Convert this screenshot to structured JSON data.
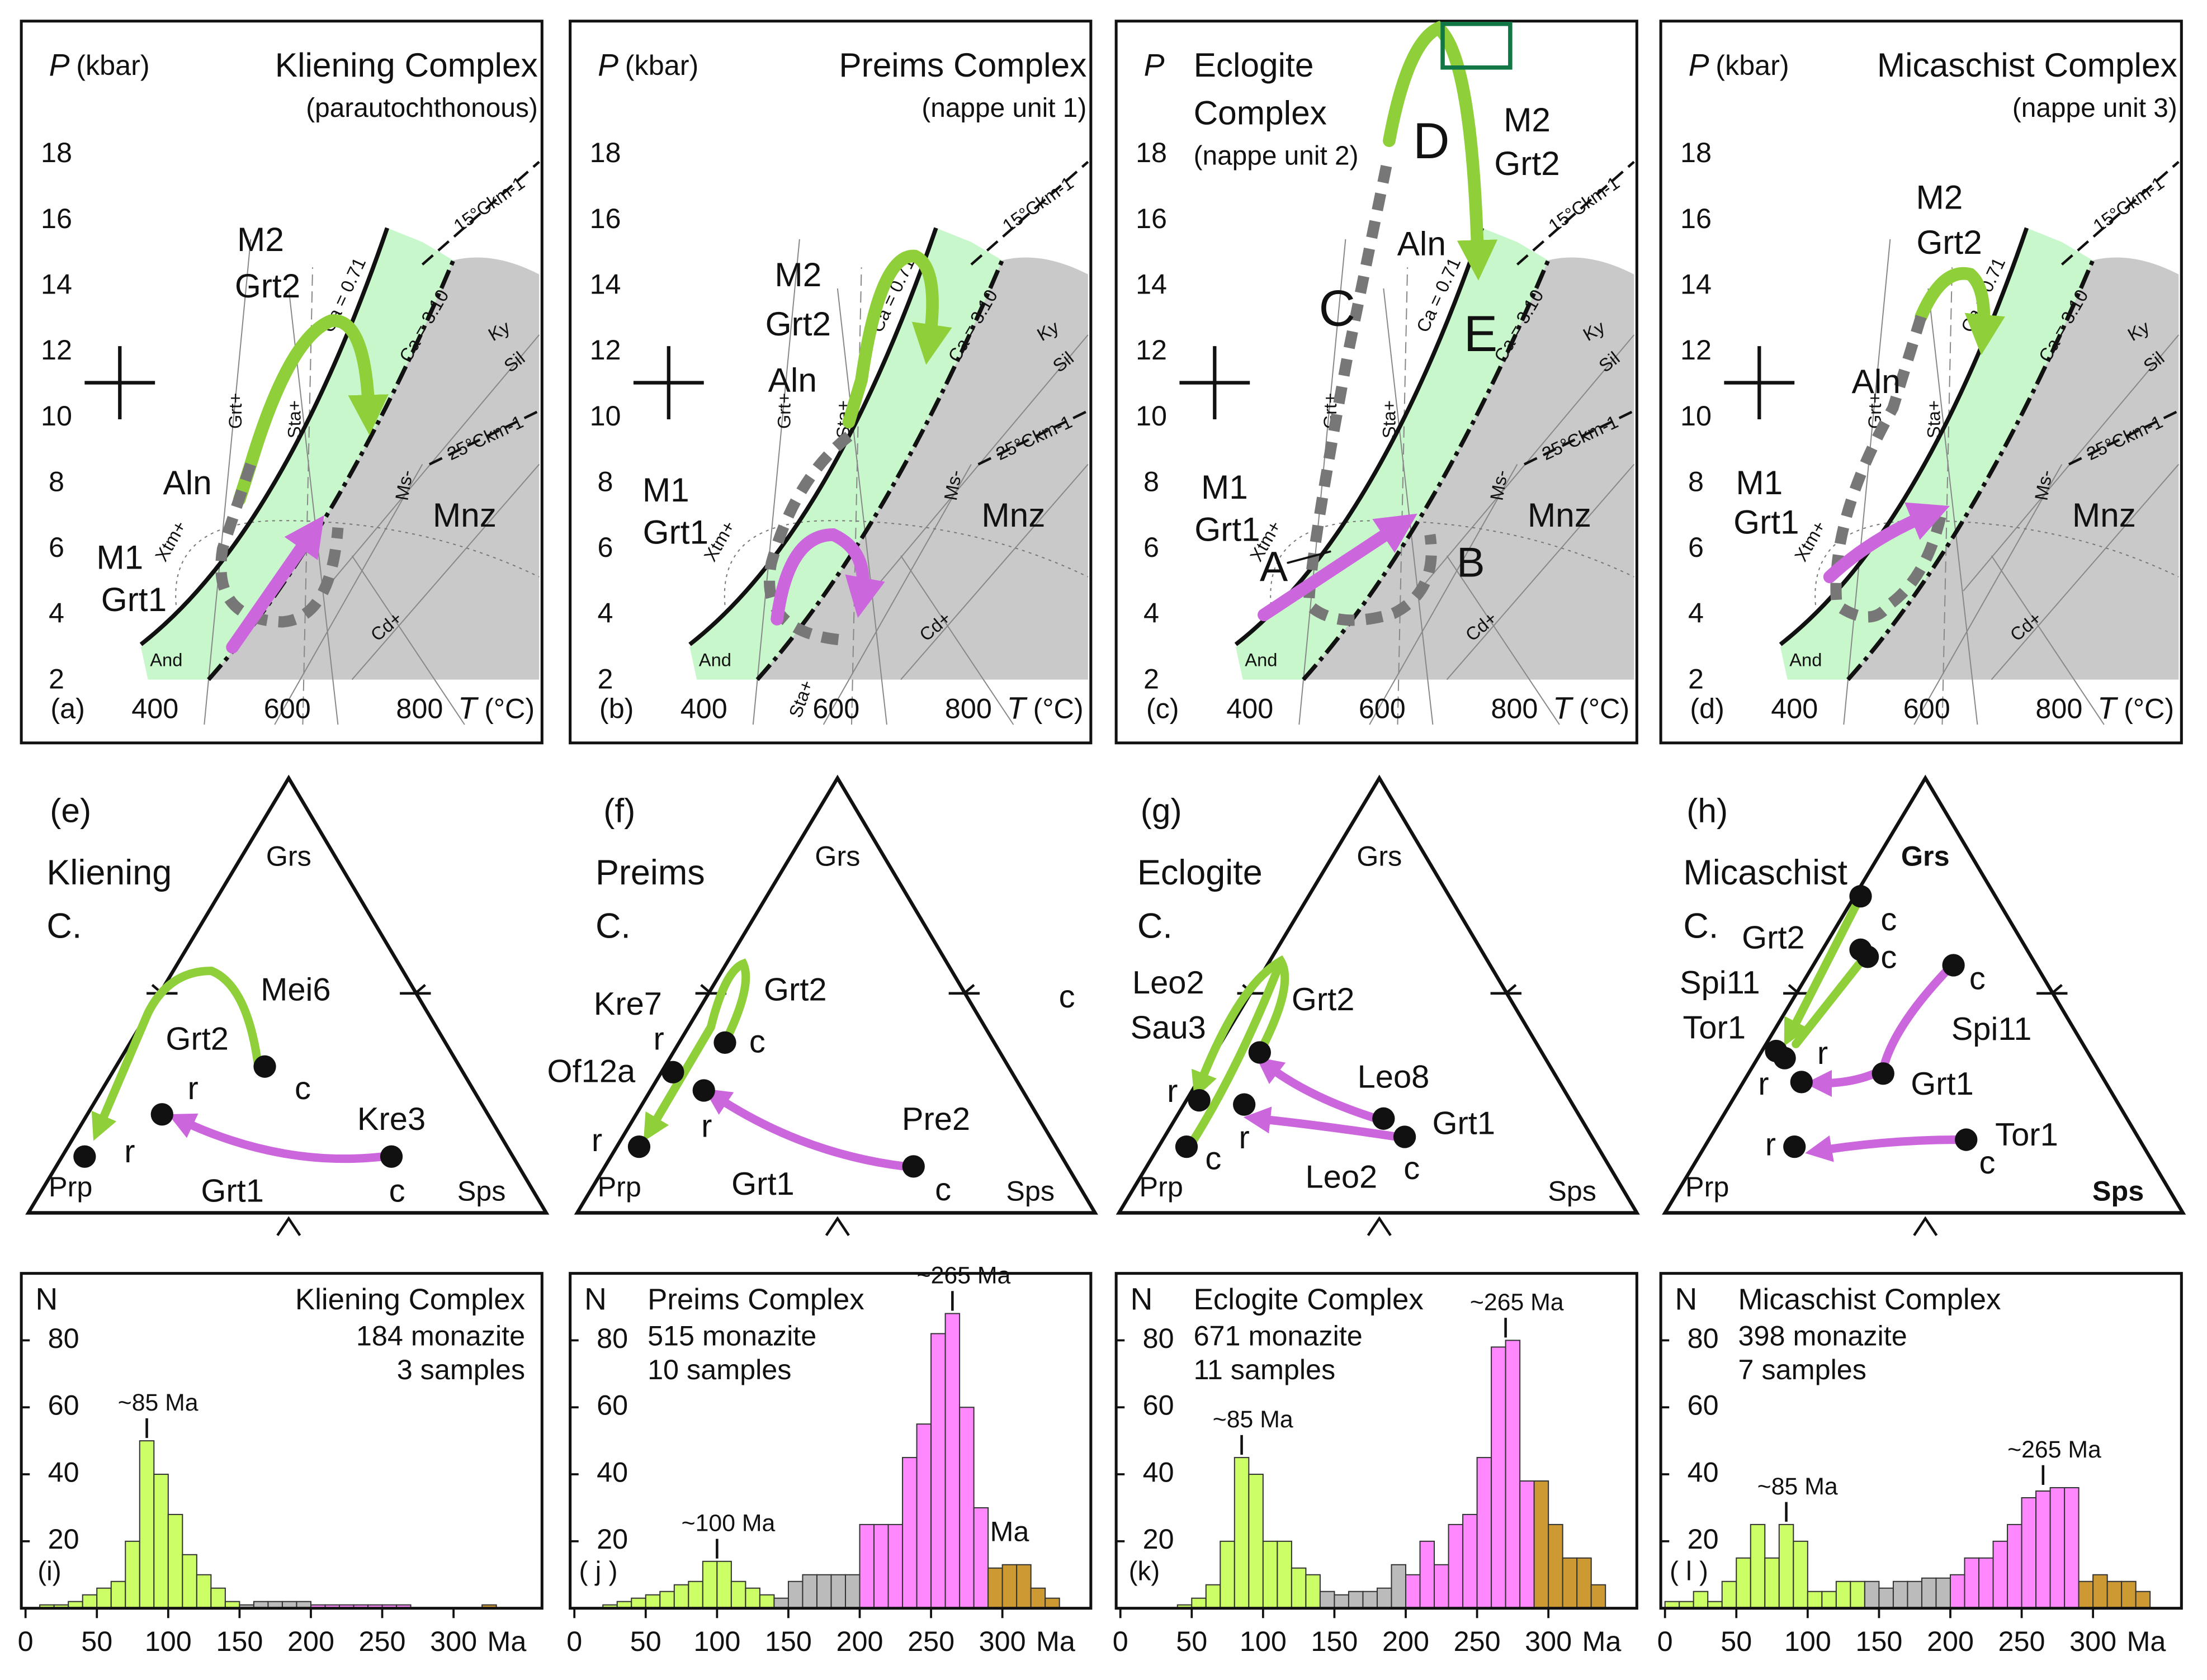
{
  "pt_axis": {
    "p_symbol": "P",
    "t_symbol": "T",
    "t_unit": "(°C)",
    "pticks": [
      2,
      4,
      6,
      8,
      10,
      12,
      14,
      16,
      18
    ],
    "tticks": [
      400,
      600,
      800
    ]
  },
  "phase_labels": [
    "Ca = 0.71",
    "Ca = 3.10",
    "Ky",
    "Sil",
    "Mnz",
    "Ms-",
    "Cd+",
    "Xtm+",
    "Grt+",
    "Sta+",
    "And",
    "15°Ckm-1",
    "25°Ckm-1"
  ],
  "pt_panels": [
    {
      "label": "(a)",
      "title": [
        "Kliening Complex"
      ],
      "subtitle": "(parautochthonous)",
      "p_unit": "(kbar)",
      "labels": [
        "M2",
        "Grt2",
        "Aln",
        "M1",
        "Grt1"
      ]
    },
    {
      "label": "(b)",
      "title": [
        "Preims Complex"
      ],
      "subtitle": "(nappe unit 1)",
      "p_unit": "(kbar)",
      "labels": [
        "M2",
        "Grt2",
        "Aln",
        "M1",
        "Grt1",
        "Sta+"
      ]
    },
    {
      "label": "(c)",
      "title": [
        "Eclogite",
        "Complex"
      ],
      "subtitle": "(nappe unit 2)",
      "labels": [
        "D",
        "M2",
        "Grt2",
        "Aln",
        "C",
        "E",
        "M1",
        "Grt1",
        "A",
        "B"
      ]
    },
    {
      "label": "(d)",
      "title": [
        "Micaschist Complex"
      ],
      "subtitle": "(nappe unit 3)",
      "p_unit": "(kbar)",
      "labels": [
        "M2",
        "Grt2",
        "Aln",
        "M1",
        "Grt1"
      ]
    }
  ],
  "ternary_vertices": {
    "top": "Grs",
    "left": "Prp",
    "right": "Sps"
  },
  "ternaries": [
    {
      "label": "(e)",
      "name": [
        "Kliening",
        "C."
      ],
      "labels": [
        "Mei6",
        "Grt2",
        "c",
        "r",
        "r",
        "Kre3",
        "Grt1",
        "c"
      ]
    },
    {
      "label": "(f)",
      "name": [
        "Preims",
        "C."
      ],
      "labels": [
        "Kre7",
        "Grt2",
        "c",
        "Of12a",
        "r",
        "r",
        "r",
        "Pre2",
        "Grt1",
        "c",
        "c"
      ]
    },
    {
      "label": "(g)",
      "name": [
        "Eclogite",
        "C."
      ],
      "labels": [
        "Leo2",
        "Sau3",
        "Grt2",
        "r",
        "r",
        "Leo8",
        "Grt1",
        "c",
        "Leo2",
        "c"
      ]
    },
    {
      "label": "(h)",
      "name": [
        "Micaschist",
        "C."
      ],
      "bold_vertices": true,
      "labels": [
        "c",
        "c",
        "Grt2",
        "Spi11",
        "Tor1",
        "r",
        "r",
        "c",
        "Spi11",
        "Grt1",
        "r",
        "c",
        "Tor1"
      ]
    }
  ],
  "chart_data": [
    {
      "type": "histogram",
      "panel": "(i)",
      "title": "Kliening Complex",
      "notes": [
        "184 monazite",
        "3 samples"
      ],
      "title_align": "right",
      "y_label": "N",
      "x_label": "Ma",
      "xlim": [
        0,
        362
      ],
      "ylim": [
        0,
        100
      ],
      "xticks": [
        0,
        50,
        100,
        150,
        200,
        250,
        300
      ],
      "yticks": [
        20,
        40,
        60,
        80
      ],
      "series": [
        {
          "color": "#ccff66",
          "bins": [
            10,
            20,
            30,
            40,
            50,
            60,
            70,
            80,
            90,
            100,
            110,
            120,
            130,
            140,
            150
          ],
          "counts": [
            1,
            1,
            2,
            4,
            6,
            8,
            20,
            50,
            40,
            28,
            16,
            10,
            6,
            2
          ]
        },
        {
          "color": "#bbbbbb",
          "bins": [
            150,
            160,
            170,
            180,
            190,
            200
          ],
          "counts": [
            1,
            2,
            2,
            2,
            2
          ]
        },
        {
          "color": "#ff88ff",
          "bins": [
            200,
            210,
            220,
            230,
            240,
            250,
            260,
            270,
            280,
            290,
            300
          ],
          "counts": [
            1,
            1,
            1,
            1,
            1,
            1,
            1,
            0,
            0,
            0
          ]
        },
        {
          "color": "#cc9933",
          "bins": [
            300,
            310,
            320,
            330,
            340
          ],
          "counts": [
            0,
            0,
            1,
            0
          ]
        }
      ],
      "annotations": [
        {
          "text": "~85 Ma",
          "x": 85,
          "marker": true
        }
      ]
    },
    {
      "type": "histogram",
      "panel": "( j )",
      "title": "Preims Complex",
      "notes": [
        "515 monazite",
        "10 samples"
      ],
      "title_align": "left",
      "y_label": "N",
      "x_label": "Ma",
      "xlim": [
        0,
        362
      ],
      "ylim": [
        0,
        100
      ],
      "xticks": [
        0,
        50,
        100,
        150,
        200,
        250,
        300
      ],
      "yticks": [
        20,
        40,
        60,
        80
      ],
      "series": [
        {
          "color": "#ccff66",
          "bins": [
            20,
            30,
            40,
            50,
            60,
            70,
            80,
            90,
            100,
            110,
            120,
            130,
            140
          ],
          "counts": [
            1,
            2,
            3,
            4,
            5,
            7,
            8,
            14,
            14,
            8,
            6,
            4
          ]
        },
        {
          "color": "#bbbbbb",
          "bins": [
            140,
            150,
            160,
            170,
            180,
            190,
            200
          ],
          "counts": [
            3,
            8,
            10,
            10,
            10,
            10
          ]
        },
        {
          "color": "#ff88ff",
          "bins": [
            200,
            210,
            220,
            230,
            240,
            250,
            260,
            270,
            280,
            290
          ],
          "counts": [
            25,
            25,
            25,
            45,
            55,
            82,
            88,
            60,
            30
          ]
        },
        {
          "color": "#cc9933",
          "bins": [
            290,
            300,
            310,
            320,
            330,
            340
          ],
          "counts": [
            12,
            13,
            13,
            6,
            3
          ]
        }
      ],
      "annotations": [
        {
          "text": "~265 Ma",
          "x": 265,
          "marker": true
        },
        {
          "text": "~100 Ma",
          "x": 100,
          "marker": true
        },
        {
          "text": "Ma",
          "x": 305,
          "marker": false
        }
      ]
    },
    {
      "type": "histogram",
      "panel": "(k)",
      "title": "Eclogite Complex",
      "notes": [
        "671 monazite",
        "11 samples"
      ],
      "title_align": "left",
      "y_label": "N",
      "x_label": "Ma",
      "xlim": [
        0,
        362
      ],
      "ylim": [
        0,
        100
      ],
      "xticks": [
        0,
        50,
        100,
        150,
        200,
        250,
        300
      ],
      "yticks": [
        20,
        40,
        60,
        80
      ],
      "series": [
        {
          "color": "#ccff66",
          "bins": [
            40,
            50,
            60,
            70,
            80,
            90,
            100,
            110,
            120,
            130,
            140
          ],
          "counts": [
            1,
            3,
            7,
            20,
            45,
            40,
            20,
            20,
            12,
            10
          ]
        },
        {
          "color": "#bbbbbb",
          "bins": [
            140,
            150,
            160,
            170,
            180,
            190,
            200
          ],
          "counts": [
            5,
            4,
            5,
            5,
            6,
            13
          ]
        },
        {
          "color": "#ff88ff",
          "bins": [
            200,
            210,
            220,
            230,
            240,
            250,
            260,
            270,
            280,
            290
          ],
          "counts": [
            10,
            20,
            13,
            25,
            28,
            45,
            78,
            80,
            38
          ]
        },
        {
          "color": "#cc9933",
          "bins": [
            290,
            300,
            310,
            320,
            330,
            340
          ],
          "counts": [
            38,
            25,
            15,
            15,
            7
          ]
        }
      ],
      "annotations": [
        {
          "text": "~265 Ma",
          "x": 270,
          "marker": true
        },
        {
          "text": "~85 Ma",
          "x": 85,
          "marker": true
        }
      ]
    },
    {
      "type": "histogram",
      "panel": "( l )",
      "title": "Micaschist Complex",
      "notes": [
        "398 monazite",
        "7 samples"
      ],
      "title_align": "left",
      "y_label": "N",
      "x_label": "Ma",
      "xlim": [
        0,
        362
      ],
      "ylim": [
        0,
        100
      ],
      "xticks": [
        0,
        50,
        100,
        150,
        200,
        250,
        300
      ],
      "yticks": [
        20,
        40,
        60,
        80
      ],
      "series": [
        {
          "color": "#ccff66",
          "bins": [
            0,
            10,
            20,
            30,
            40,
            50,
            60,
            70,
            80,
            90,
            100,
            110,
            120,
            130,
            140
          ],
          "counts": [
            2,
            2,
            5,
            2,
            8,
            15,
            25,
            15,
            25,
            20,
            5,
            5,
            8,
            8
          ]
        },
        {
          "color": "#bbbbbb",
          "bins": [
            140,
            150,
            160,
            170,
            180,
            190,
            200
          ],
          "counts": [
            8,
            6,
            8,
            8,
            9,
            9
          ]
        },
        {
          "color": "#ff88ff",
          "bins": [
            200,
            210,
            220,
            230,
            240,
            250,
            260,
            270,
            280,
            290
          ],
          "counts": [
            10,
            15,
            15,
            20,
            25,
            33,
            35,
            36,
            36
          ]
        },
        {
          "color": "#cc9933",
          "bins": [
            290,
            300,
            310,
            320,
            330,
            340
          ],
          "counts": [
            8,
            10,
            8,
            8,
            5
          ]
        }
      ],
      "annotations": [
        {
          "text": "~265 Ma",
          "x": 265,
          "marker": true
        },
        {
          "text": "~85 Ma",
          "x": 85,
          "marker": true
        }
      ]
    }
  ]
}
